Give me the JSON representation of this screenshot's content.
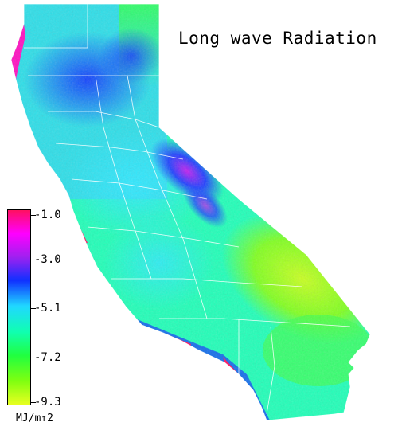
{
  "map": {
    "title": "Long wave Radiation",
    "region": "California",
    "colors": {
      "background": "#ffffff",
      "borders": "#ffffff"
    }
  },
  "legend": {
    "unit": "MJ/m↑2",
    "ticks": [
      "-1.0",
      "-3.0",
      "-5.1",
      "-7.2",
      "-9.3"
    ],
    "scale": {
      "min": -9.3,
      "max": -1.0,
      "stops": [
        {
          "value": -1.0,
          "color": "#ff1060"
        },
        {
          "value": -2.0,
          "color": "#ff00ff"
        },
        {
          "value": -3.0,
          "color": "#a020f0"
        },
        {
          "value": -4.0,
          "color": "#1030ff"
        },
        {
          "value": -5.1,
          "color": "#20d8ff"
        },
        {
          "value": -6.2,
          "color": "#10ffb0"
        },
        {
          "value": -7.2,
          "color": "#20ff40"
        },
        {
          "value": -8.3,
          "color": "#80ff10"
        },
        {
          "value": -9.3,
          "color": "#e8ff20"
        }
      ]
    }
  }
}
